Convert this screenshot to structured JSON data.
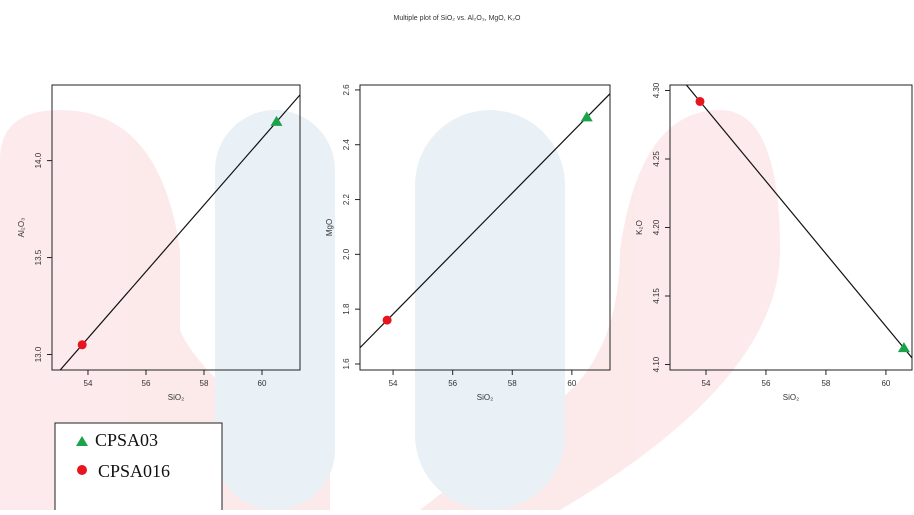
{
  "title": "Multiple plot of SiO₂ vs. Al₂O₃, MgO, K₂O",
  "chart_data": [
    {
      "type": "scatter",
      "xlabel": "SiO₂",
      "ylabel": "Al₂O₃",
      "xlim": [
        52.76,
        61.31
      ],
      "xticks": [
        54,
        56,
        58,
        60
      ],
      "ylim": [
        12.92,
        14.39
      ],
      "yticks": [
        {
          "value": 13,
          "label": "13.0"
        },
        13.5,
        {
          "value": 14,
          "label": "14.0"
        }
      ],
      "fit_line": true,
      "series": [
        {
          "name": "CPSA03",
          "color": "#1aa34a",
          "marker": "triangle",
          "x": [
            60.5
          ],
          "values": [
            14.2
          ]
        },
        {
          "name": "CPSA016",
          "color": "#e8141e",
          "marker": "circle",
          "x": [
            53.8
          ],
          "values": [
            13.05
          ]
        }
      ]
    },
    {
      "type": "scatter",
      "xlabel": "SiO₂",
      "ylabel": "MgO",
      "xlim": [
        52.89,
        61.28
      ],
      "xticks": [
        54,
        56,
        58,
        60
      ],
      "ylim": [
        1.578,
        2.618
      ],
      "yticks": [
        1.6,
        1.8,
        {
          "value": 2,
          "label": "2.0"
        },
        2.2,
        2.4,
        2.6
      ],
      "fit_line": true,
      "series": [
        {
          "name": "CPSA03",
          "color": "#1aa34a",
          "marker": "triangle",
          "x": [
            60.5
          ],
          "values": [
            2.5
          ]
        },
        {
          "name": "CPSA016",
          "color": "#e8141e",
          "marker": "circle",
          "x": [
            53.8
          ],
          "values": [
            1.76
          ]
        }
      ]
    },
    {
      "type": "scatter",
      "xlabel": "SiO₂",
      "ylabel": "K₂O",
      "xlim": [
        52.8,
        60.87
      ],
      "xticks": [
        54,
        56,
        58,
        60
      ],
      "ylim": [
        4.096,
        4.304
      ],
      "yticks": [
        {
          "value": 4.1,
          "label": "4.10"
        },
        4.15,
        {
          "value": 4.2,
          "label": "4.20"
        },
        4.25,
        {
          "value": 4.3,
          "label": "4.30"
        }
      ],
      "fit_line": true,
      "series": [
        {
          "name": "CPSA03",
          "color": "#1aa34a",
          "marker": "triangle",
          "x": [
            60.6
          ],
          "values": [
            4.112
          ]
        },
        {
          "name": "CPSA016",
          "color": "#e8141e",
          "marker": "circle",
          "x": [
            53.8
          ],
          "values": [
            4.292
          ]
        }
      ]
    }
  ]
}
